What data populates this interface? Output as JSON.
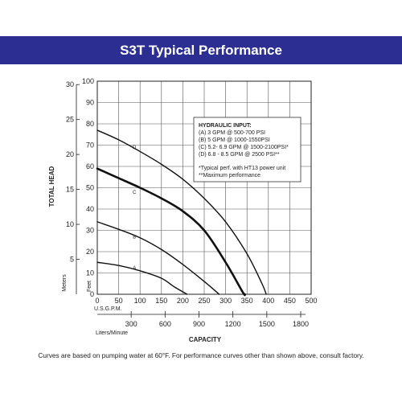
{
  "banner": {
    "title": "S3T Typical Performance"
  },
  "footnote": "Curves are based on pumping water at 60°F. For performance curves other than shown above, consult factory.",
  "chart_data": {
    "type": "line",
    "title": "S3T Typical Performance",
    "xlabel": "CAPACITY",
    "ylabel": "TOTAL HEAD",
    "x_unit_primary": "U.S.G.P.M.",
    "x_unit_secondary": "Liters/Minute",
    "y_unit_primary": "Feet",
    "y_unit_secondary": "Meters",
    "xlim": [
      0,
      500
    ],
    "ylim": [
      0,
      100
    ],
    "x_ticks": [
      "0",
      "50",
      "100",
      "150",
      "200",
      "250",
      "300",
      "350",
      "400",
      "450",
      "500"
    ],
    "y_ticks": [
      "0",
      "10",
      "20",
      "30",
      "40",
      "50",
      "60",
      "70",
      "80",
      "90",
      "100"
    ],
    "x_secondary_ticks": [
      "300",
      "600",
      "900",
      "1200",
      "1500",
      "1800"
    ],
    "y_secondary_ticks": [
      "5",
      "10",
      "15",
      "20",
      "25",
      "30"
    ],
    "grid": true,
    "series": [
      {
        "name": "A",
        "emphasis": false,
        "label_at": [
          100,
          12.5
        ],
        "points": [
          [
            0,
            15
          ],
          [
            50,
            13.5
          ],
          [
            100,
            11
          ],
          [
            150,
            7.5
          ],
          [
            180,
            3.5
          ],
          [
            210,
            0
          ]
        ]
      },
      {
        "name": "B",
        "emphasis": false,
        "label_at": [
          100,
          27
        ],
        "points": [
          [
            0,
            34
          ],
          [
            50,
            30.5
          ],
          [
            100,
            26.5
          ],
          [
            150,
            21
          ],
          [
            200,
            14
          ],
          [
            250,
            6
          ],
          [
            285,
            0
          ]
        ]
      },
      {
        "name": "C",
        "emphasis": true,
        "label_at": [
          100,
          48
        ],
        "points": [
          [
            0,
            59
          ],
          [
            50,
            54.5
          ],
          [
            100,
            50
          ],
          [
            150,
            45
          ],
          [
            200,
            39
          ],
          [
            250,
            30
          ],
          [
            300,
            15
          ],
          [
            340,
            1
          ],
          [
            345,
            0
          ]
        ]
      },
      {
        "name": "D",
        "emphasis": false,
        "label_at": [
          100,
          69
        ],
        "points": [
          [
            0,
            77
          ],
          [
            50,
            72.5
          ],
          [
            100,
            67
          ],
          [
            150,
            61
          ],
          [
            200,
            54
          ],
          [
            250,
            45
          ],
          [
            300,
            34
          ],
          [
            350,
            19
          ],
          [
            385,
            5
          ],
          [
            395,
            0
          ]
        ]
      }
    ],
    "legend": {
      "title": "HYDRAULIC INPUT:",
      "lines": [
        "(A) 3 GPM @ 500-700 PSI",
        "(B) 5 GPM @ 1000-1550PSI",
        "(C) 5.2- 6.9 GPM @ 1500-2100PSI*",
        "(D) 6.8 - 8.5 GPM @ 2500 PSI**"
      ],
      "notes": [
        "*Typical perf. with HT13 power unit",
        "**Maximum performance"
      ],
      "placement": "top-right"
    }
  }
}
